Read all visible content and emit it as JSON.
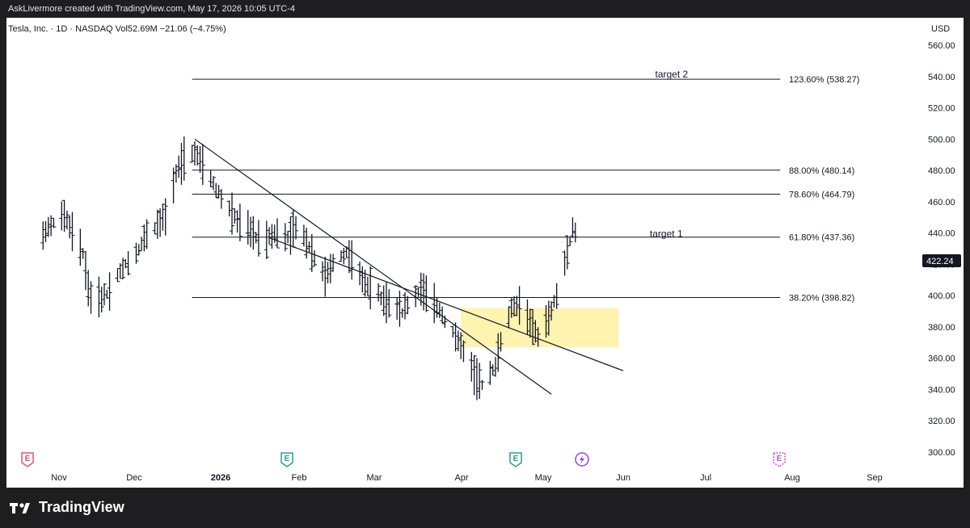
{
  "header": {
    "attribution": "AskLivermore created with TradingView.com, May 17, 2026 10:05 UTC-4"
  },
  "legend": {
    "text": "Tesla, Inc. · 1D · NASDAQ  Vol52.69M  −21.06 (−4.75%)"
  },
  "currency": "USD",
  "brand": {
    "name": "TradingView"
  },
  "icons": {
    "earnings_marker": "E",
    "earnings_colors": [
      "#e0566c",
      "#2a9d8f",
      "#2a9d8f"
    ],
    "future_earnings_color": "#c64fd8",
    "split_icon": "lightning-circle-icon"
  },
  "chart_data": {
    "type": "ohlc",
    "y_axis": {
      "min": 300,
      "max": 560,
      "ticks": [
        300,
        320,
        340,
        360,
        380,
        400,
        420,
        440,
        460,
        480,
        500,
        520,
        540,
        560
      ],
      "labels": [
        "300.00",
        "320.00",
        "340.00",
        "360.00",
        "380.00",
        "400.00",
        "420.00",
        "440.00",
        "460.00",
        "480.00",
        "500.00",
        "520.00",
        "540.00",
        "560.00"
      ]
    },
    "x_axis": {
      "labels": [
        "Nov",
        "Dec",
        "2026",
        "Feb",
        "Mar",
        "Apr",
        "May",
        "Jun",
        "Jul",
        "Aug",
        "Sep"
      ]
    },
    "last_price": {
      "value": 422.24,
      "label": "422.24",
      "color": "#131722"
    },
    "fib_levels": [
      {
        "label": "123.60% (538.27)",
        "value": 538.27
      },
      {
        "label": "88.00% (480.14)",
        "value": 480.14
      },
      {
        "label": "78.60% (464.79)",
        "value": 464.79
      },
      {
        "label": "61.80% (437.36)",
        "value": 437.36
      },
      {
        "label": "38.20% (398.82)",
        "value": 398.82
      }
    ],
    "annotations": [
      {
        "text": "target 2",
        "value": 540
      },
      {
        "text": "target 1",
        "value": 438
      }
    ],
    "zone": {
      "from_value": 392,
      "to_value": 367,
      "color": "#fff3b0"
    },
    "trendlines": [
      {
        "from": [
          "Dec 22",
          500
        ],
        "to": [
          "May 5",
          337
        ]
      },
      {
        "from": [
          "Jan 19",
          437
        ],
        "to": [
          "Jun 1",
          352
        ]
      }
    ],
    "price_path": [
      [
        "Oct 24",
        435
      ],
      [
        "Oct 29",
        445
      ],
      [
        "Nov 3",
        452
      ],
      [
        "Nov 7",
        438
      ],
      [
        "Nov 10",
        428
      ],
      [
        "Nov 12",
        405
      ],
      [
        "Nov 14",
        395
      ],
      [
        "Nov 18",
        400
      ],
      [
        "Nov 20",
        402
      ],
      [
        "Nov 24",
        415
      ],
      [
        "Nov 27",
        422
      ],
      [
        "Dec 1",
        430
      ],
      [
        "Dec 4",
        440
      ],
      [
        "Dec 8",
        446
      ],
      [
        "Dec 12",
        452
      ],
      [
        "Dec 15",
        478
      ],
      [
        "Dec 18",
        488
      ],
      [
        "Dec 22",
        492
      ],
      [
        "Dec 26",
        482
      ],
      [
        "Dec 30",
        468
      ],
      [
        "Jan 5",
        452
      ],
      [
        "Jan 9",
        445
      ],
      [
        "Jan 13",
        440
      ],
      [
        "Jan 16",
        434
      ],
      [
        "Jan 21",
        440
      ],
      [
        "Jan 26",
        438
      ],
      [
        "Jan 29",
        444
      ],
      [
        "Feb 2",
        435
      ],
      [
        "Feb 5",
        425
      ],
      [
        "Feb 9",
        412
      ],
      [
        "Feb 12",
        420
      ],
      [
        "Feb 17",
        428
      ],
      [
        "Feb 20",
        418
      ],
      [
        "Feb 24",
        408
      ],
      [
        "Mar 2",
        400
      ],
      [
        "Mar 6",
        395
      ],
      [
        "Mar 10",
        390
      ],
      [
        "Mar 13",
        396
      ],
      [
        "Mar 17",
        405
      ],
      [
        "Mar 20",
        398
      ],
      [
        "Mar 24",
        392
      ],
      [
        "Mar 27",
        380
      ],
      [
        "Mar 31",
        372
      ],
      [
        "Apr 3",
        360
      ],
      [
        "Apr 7",
        348
      ],
      [
        "Apr 9",
        343
      ],
      [
        "Apr 14",
        355
      ],
      [
        "Apr 16",
        372
      ],
      [
        "Apr 20",
        392
      ],
      [
        "Apr 23",
        395
      ],
      [
        "Apr 27",
        382
      ],
      [
        "Apr 30",
        375
      ],
      [
        "May 4",
        385
      ],
      [
        "May 7",
        400
      ],
      [
        "May 11",
        428
      ],
      [
        "May 13",
        442
      ],
      [
        "May 15",
        438
      ],
      [
        "May 16",
        424
      ]
    ]
  }
}
